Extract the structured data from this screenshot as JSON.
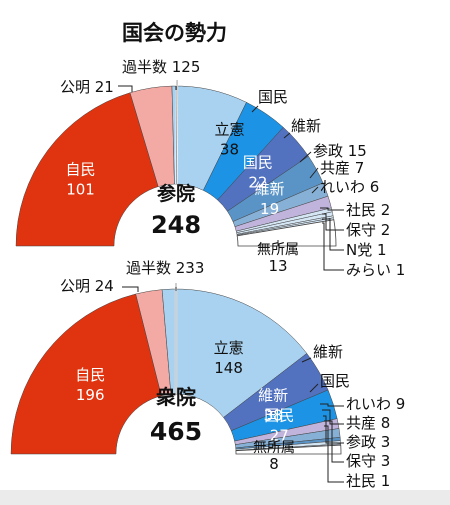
{
  "title": "国会の勢力",
  "colors": {
    "ldp": "#e03410",
    "komeito": "#f3a9a4",
    "cdp": "#a8d2f0",
    "dpfp": "#1c93e4",
    "ishin": "#5272c0",
    "sanseito": "#5a93c6",
    "jcp": "#87b0d6",
    "reiwa": "#c0b4dc",
    "minor": "#d4e5f3",
    "indep": "#ffffff",
    "line": "#222222"
  },
  "chart_data": [
    {
      "type": "pie",
      "chamber": "参院",
      "total": "248",
      "majority_label": "過半数",
      "majority_value": "125",
      "segments": [
        {
          "party": "自民",
          "seats": 101,
          "color_key": "ldp",
          "label": "自民",
          "value_label": "101"
        },
        {
          "party": "公明",
          "seats": 21,
          "color_key": "komeito",
          "label": "公明 21"
        },
        {
          "party": "立憲",
          "seats": 38,
          "color_key": "cdp",
          "label": "立憲",
          "value_label": "38"
        },
        {
          "party": "国民",
          "seats": 22,
          "color_key": "dpfp",
          "label": "国民",
          "value_label": "22"
        },
        {
          "party": "維新",
          "seats": 19,
          "color_key": "ishin",
          "label": "維新",
          "value_label": "19"
        },
        {
          "party": "参政",
          "seats": 15,
          "color_key": "sanseito",
          "label": "参政 15"
        },
        {
          "party": "共産",
          "seats": 7,
          "color_key": "jcp",
          "label": "共産 7"
        },
        {
          "party": "れいわ",
          "seats": 6,
          "color_key": "reiwa",
          "label": "れいわ 6"
        },
        {
          "party": "社民",
          "seats": 2,
          "color_key": "minor",
          "label": "社民 2"
        },
        {
          "party": "保守",
          "seats": 2,
          "color_key": "minor",
          "label": "保守 2"
        },
        {
          "party": "N党",
          "seats": 1,
          "color_key": "minor",
          "label": "N党 1"
        },
        {
          "party": "みらい",
          "seats": 1,
          "color_key": "minor",
          "label": "みらい 1"
        },
        {
          "party": "無所属",
          "seats": 13,
          "color_key": "indep",
          "label": "無所属",
          "value_label": "13"
        }
      ]
    },
    {
      "type": "pie",
      "chamber": "衆院",
      "total": "465",
      "majority_label": "過半数",
      "majority_value": "233",
      "segments": [
        {
          "party": "自民",
          "seats": 196,
          "color_key": "ldp",
          "label": "自民",
          "value_label": "196"
        },
        {
          "party": "公明",
          "seats": 24,
          "color_key": "komeito",
          "label": "公明 24"
        },
        {
          "party": "立憲",
          "seats": 148,
          "color_key": "cdp",
          "label": "立憲",
          "value_label": "148"
        },
        {
          "party": "維新",
          "seats": 38,
          "color_key": "ishin",
          "label": "維新",
          "value_label": "38"
        },
        {
          "party": "国民",
          "seats": 27,
          "color_key": "dpfp",
          "label": "国民",
          "value_label": "27"
        },
        {
          "party": "れいわ",
          "seats": 9,
          "color_key": "reiwa",
          "label": "れいわ 9"
        },
        {
          "party": "共産",
          "seats": 8,
          "color_key": "jcp",
          "label": "共産 8"
        },
        {
          "party": "参政",
          "seats": 3,
          "color_key": "sanseito",
          "label": "参政 3"
        },
        {
          "party": "保守",
          "seats": 3,
          "color_key": "minor",
          "label": "保守 3"
        },
        {
          "party": "社民",
          "seats": 1,
          "color_key": "minor",
          "label": "社民 1"
        },
        {
          "party": "無所属",
          "seats": 8,
          "color_key": "indep",
          "label": "無所属",
          "value_label": "8"
        }
      ]
    }
  ]
}
